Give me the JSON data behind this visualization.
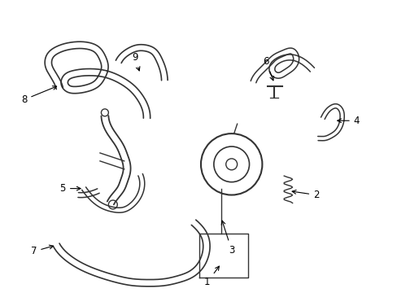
{
  "background_color": "#ffffff",
  "line_color": "#333333",
  "label_color": "#000000",
  "fig_width": 4.89,
  "fig_height": 3.6,
  "dpi": 100,
  "label_fontsize": 8.5
}
